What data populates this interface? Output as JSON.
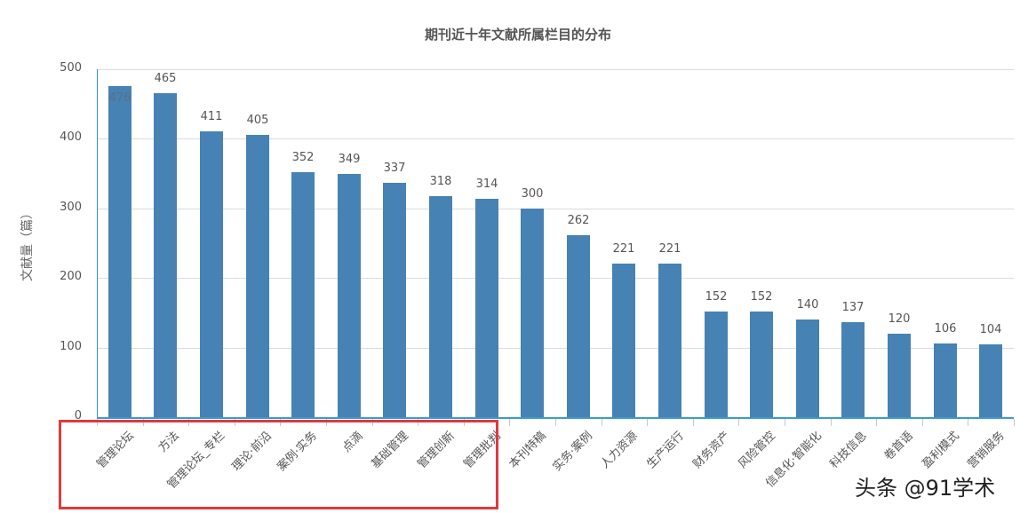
{
  "chart_data": {
    "type": "bar",
    "title": "期刊近十年文献所属栏目的分布",
    "xlabel": "",
    "ylabel": "文献量（篇）",
    "ylim": [
      0,
      500
    ],
    "yticks": [
      0,
      100,
      200,
      300,
      400,
      500
    ],
    "grid": true,
    "legend": null,
    "categories": [
      "管理论坛",
      "方法",
      "管理论坛_专栏",
      "理论·前沿",
      "案例·实务",
      "点滴",
      "基础管理",
      "管理创新",
      "管理批判",
      "本刊特稿",
      "实务·案例",
      "人力资源",
      "生产运行",
      "财务资产",
      "风险管控",
      "信息化·智能化",
      "科技信息",
      "卷首语",
      "盈利模式",
      "营销服务"
    ],
    "values": [
      476,
      465,
      411,
      405,
      352,
      349,
      337,
      318,
      314,
      300,
      262,
      221,
      221,
      152,
      152,
      140,
      137,
      120,
      106,
      104
    ],
    "bar_color": "#4682b4",
    "annotations": [
      {
        "type": "highlight-box",
        "color": "#e0393e",
        "covers_categories": [
          "管理论坛",
          "方法",
          "管理论坛_专栏",
          "理论·前沿",
          "案例·实务",
          "点滴",
          "基础管理",
          "管理创新",
          "管理批判"
        ]
      }
    ]
  },
  "watermark": "头条 @91学术",
  "colors": {
    "bar": "#4682b4",
    "axis": "#3a9bd5",
    "grid": "#dcdcdc",
    "highlight": "#e0393e",
    "text": "#555555"
  }
}
